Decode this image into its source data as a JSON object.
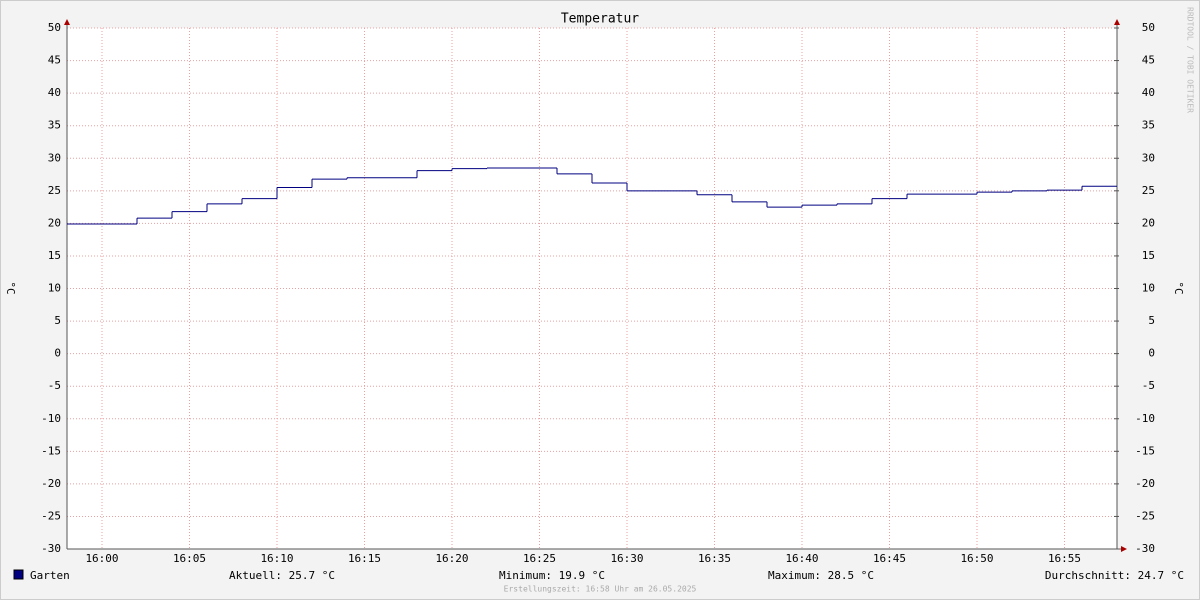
{
  "chart_data": {
    "type": "step",
    "title": "Temperatur",
    "ylabel": "°C",
    "y2label": "°C",
    "watermark": "RRDTOOL / TOBI OETIKER",
    "x": [
      "15:58",
      "16:02",
      "16:04",
      "16:06",
      "16:08",
      "16:10",
      "16:12",
      "16:14",
      "16:18",
      "16:20",
      "16:22",
      "16:26",
      "16:28",
      "16:30",
      "16:34",
      "16:36",
      "16:38",
      "16:40",
      "16:42",
      "16:44",
      "16:46",
      "16:50",
      "16:52",
      "16:54",
      "16:56"
    ],
    "series": [
      {
        "name": "Garten",
        "color": "#000080",
        "values": [
          19.9,
          20.8,
          21.8,
          23.0,
          23.8,
          25.5,
          26.8,
          27.0,
          28.1,
          28.4,
          28.5,
          27.6,
          26.2,
          25.0,
          24.4,
          23.3,
          22.5,
          22.8,
          23.0,
          23.8,
          24.5,
          24.8,
          25.0,
          25.1,
          25.7
        ]
      }
    ],
    "xlim": [
      "15:58",
      "16:58"
    ],
    "xticks": [
      "16:00",
      "16:05",
      "16:10",
      "16:15",
      "16:20",
      "16:25",
      "16:30",
      "16:35",
      "16:40",
      "16:45",
      "16:50",
      "16:55"
    ],
    "ylim": [
      -30,
      50
    ],
    "yticks": [
      -30,
      -25,
      -20,
      -15,
      -10,
      -5,
      0,
      5,
      10,
      15,
      20,
      25,
      30,
      35,
      40,
      45,
      50
    ],
    "y2lim": [
      -30,
      50
    ],
    "y2ticks": [
      -30,
      -25,
      -20,
      -15,
      -10,
      -5,
      0,
      5,
      10,
      15,
      20,
      25,
      30,
      35,
      40,
      45,
      50
    ],
    "grid": true,
    "stats": [
      "Aktuell: 25.7 °C",
      "Minimum: 19.9 °C",
      "Maximum: 28.5 °C",
      "Durchschnitt: 24.7 °C"
    ],
    "footer": "Erstellungszeit: 16:58 Uhr am 26.05.2025"
  }
}
